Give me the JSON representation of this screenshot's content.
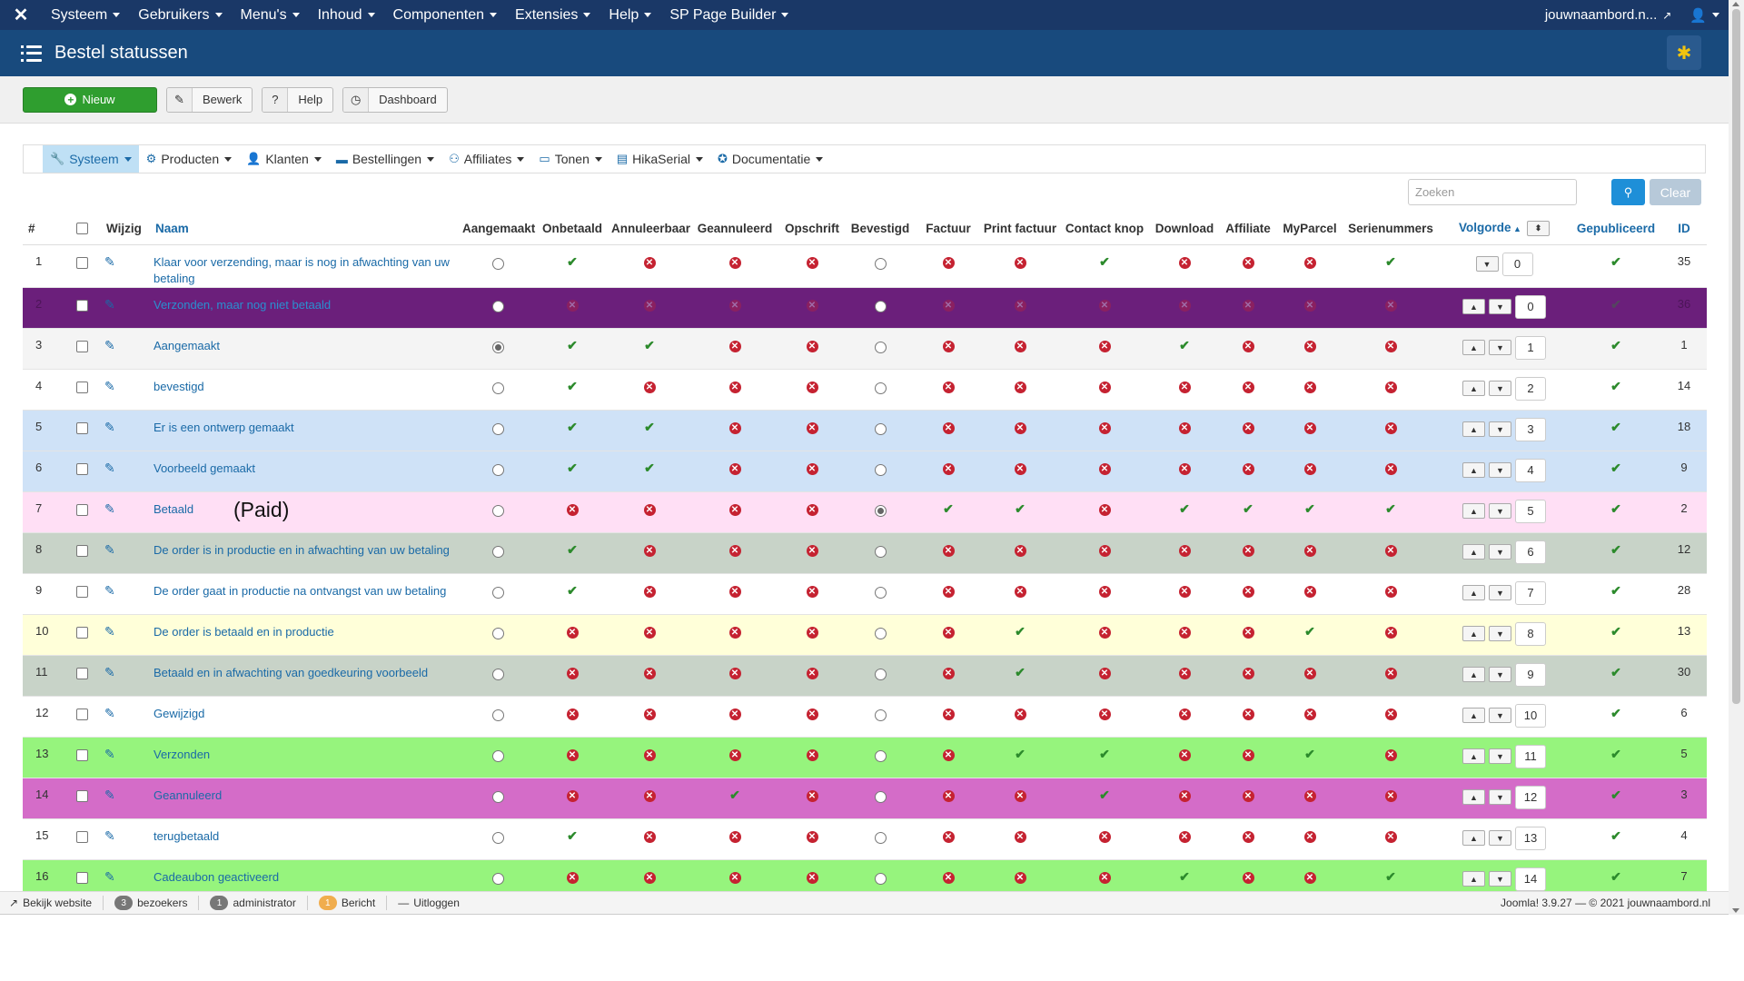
{
  "topbar": {
    "menus": [
      "Systeem",
      "Gebruikers",
      "Menu's",
      "Inhoud",
      "Componenten",
      "Extensies",
      "Help",
      "SP Page Builder"
    ],
    "site": "jouwnaambord.n...",
    "user_icon": "user-icon"
  },
  "header": {
    "title": "Bestel statussen"
  },
  "toolbar": {
    "new": "Nieuw",
    "edit": "Bewerk",
    "help": "Help",
    "dashboard": "Dashboard"
  },
  "subnav": [
    {
      "label": "Systeem",
      "icon": "wrench-icon"
    },
    {
      "label": "Producten",
      "icon": "products-icon"
    },
    {
      "label": "Klanten",
      "icon": "user-icon"
    },
    {
      "label": "Bestellingen",
      "icon": "cart-icon"
    },
    {
      "label": "Affiliates",
      "icon": "affiliates-icon"
    },
    {
      "label": "Tonen",
      "icon": "monitor-icon"
    },
    {
      "label": "HikaSerial",
      "icon": "serial-icon"
    },
    {
      "label": "Documentatie",
      "icon": "help-icon"
    }
  ],
  "search": {
    "placeholder": "Zoeken",
    "clear": "Clear"
  },
  "columns": [
    "#",
    "",
    "Wijzig",
    "Naam",
    "Aangemaakt",
    "Onbetaald",
    "Annuleerbaar",
    "Geannuleerd",
    "Opschrift",
    "Bevestigd",
    "Factuur",
    "Print factuur",
    "Contact knop",
    "Download",
    "Affiliate",
    "MyParcel",
    "Serienummers",
    "Volgorde",
    "Gepubliceerd",
    "ID"
  ],
  "annotation": "(Paid)",
  "rows": [
    {
      "n": "1",
      "name": "Klaar voor verzending, maar is nog in afwachting van uw betaling",
      "bg": "#ffffff",
      "created": false,
      "flags": "y n n n n n y n n n y n",
      "ord": "0",
      "id": "35"
    },
    {
      "n": "2",
      "name": "Verzonden, maar nog niet betaald",
      "bg": "#6b1f7b",
      "created": false,
      "flags": "n n n n n n n n n n n n",
      "ord": "0",
      "id": "36",
      "dark": true
    },
    {
      "n": "3",
      "name": "Aangemaakt",
      "bg": "#f4f4f4",
      "created": true,
      "flags": "y y n n n n n y n n n n",
      "ord": "1",
      "id": "1"
    },
    {
      "n": "4",
      "name": "bevestigd",
      "bg": "#ffffff",
      "created": false,
      "flags": "y n n n n n n n n n n y",
      "ord": "2",
      "id": "14"
    },
    {
      "n": "5",
      "name": "Er is een ontwerp gemaakt",
      "bg": "#cfe2f7",
      "created": false,
      "flags": "y y n n n n n n n n n n",
      "ord": "3",
      "id": "18"
    },
    {
      "n": "6",
      "name": "Voorbeeld gemaakt",
      "bg": "#cfe2f7",
      "created": false,
      "flags": "y y n n n n n n n n n n",
      "ord": "4",
      "id": "9"
    },
    {
      "n": "7",
      "name": "Betaald",
      "bg": "#ffdff5",
      "created": false,
      "confirmed": true,
      "flags": "n n n n y y n y y y y",
      "ord": "5",
      "id": "2"
    },
    {
      "n": "8",
      "name": "De order is in productie en in afwachting van uw betaling",
      "bg": "#c8d3c8",
      "created": false,
      "flags": "y n n n n n n n n n n n",
      "ord": "6",
      "id": "12"
    },
    {
      "n": "9",
      "name": "De order gaat in productie na ontvangst van uw betaling",
      "bg": "#ffffff",
      "created": false,
      "flags": "y n n n n n n n n n n n",
      "ord": "7",
      "id": "28"
    },
    {
      "n": "10",
      "name": "De order is betaald en in productie",
      "bg": "#ffffd9",
      "created": false,
      "flags": "n n n n n y n n n y n",
      "ord": "8",
      "id": "13"
    },
    {
      "n": "11",
      "name": "Betaald en in afwachting van goedkeuring voorbeeld",
      "bg": "#c8d3c8",
      "created": false,
      "flags": "n n n n n y n n n n n",
      "ord": "9",
      "id": "30"
    },
    {
      "n": "12",
      "name": "Gewijzigd",
      "bg": "#ffffff",
      "created": false,
      "flags": "n n n n n n n n n n n",
      "ord": "10",
      "id": "6"
    },
    {
      "n": "13",
      "name": "Verzonden",
      "bg": "#96f47d",
      "created": false,
      "flags": "n n n n n y y n n y n",
      "ord": "11",
      "id": "5"
    },
    {
      "n": "14",
      "name": "Geannuleerd",
      "bg": "#d46cc8",
      "created": false,
      "flags": "n n y n n n y n n n n",
      "ord": "12",
      "id": "3",
      "magenta": true
    },
    {
      "n": "15",
      "name": "terugbetaald",
      "bg": "#ffffff",
      "created": false,
      "flags": "y n n n n n n n n n n",
      "ord": "13",
      "id": "4"
    },
    {
      "n": "16",
      "name": "Cadeaubon geactiveerd",
      "bg": "#96f47d",
      "created": false,
      "flags": "n n n n n n n y n n y",
      "ord": "14",
      "id": "7"
    }
  ],
  "footer": {
    "view": "Bekijk website",
    "visitors_count": "3",
    "visitors": "bezoekers",
    "admin_count": "1",
    "admin": "administrator",
    "msg_count": "1",
    "msg": "Bericht",
    "logout": "Uitloggen",
    "version": "Joomla! 3.9.27 — © 2021 jouwnaambord.nl"
  }
}
